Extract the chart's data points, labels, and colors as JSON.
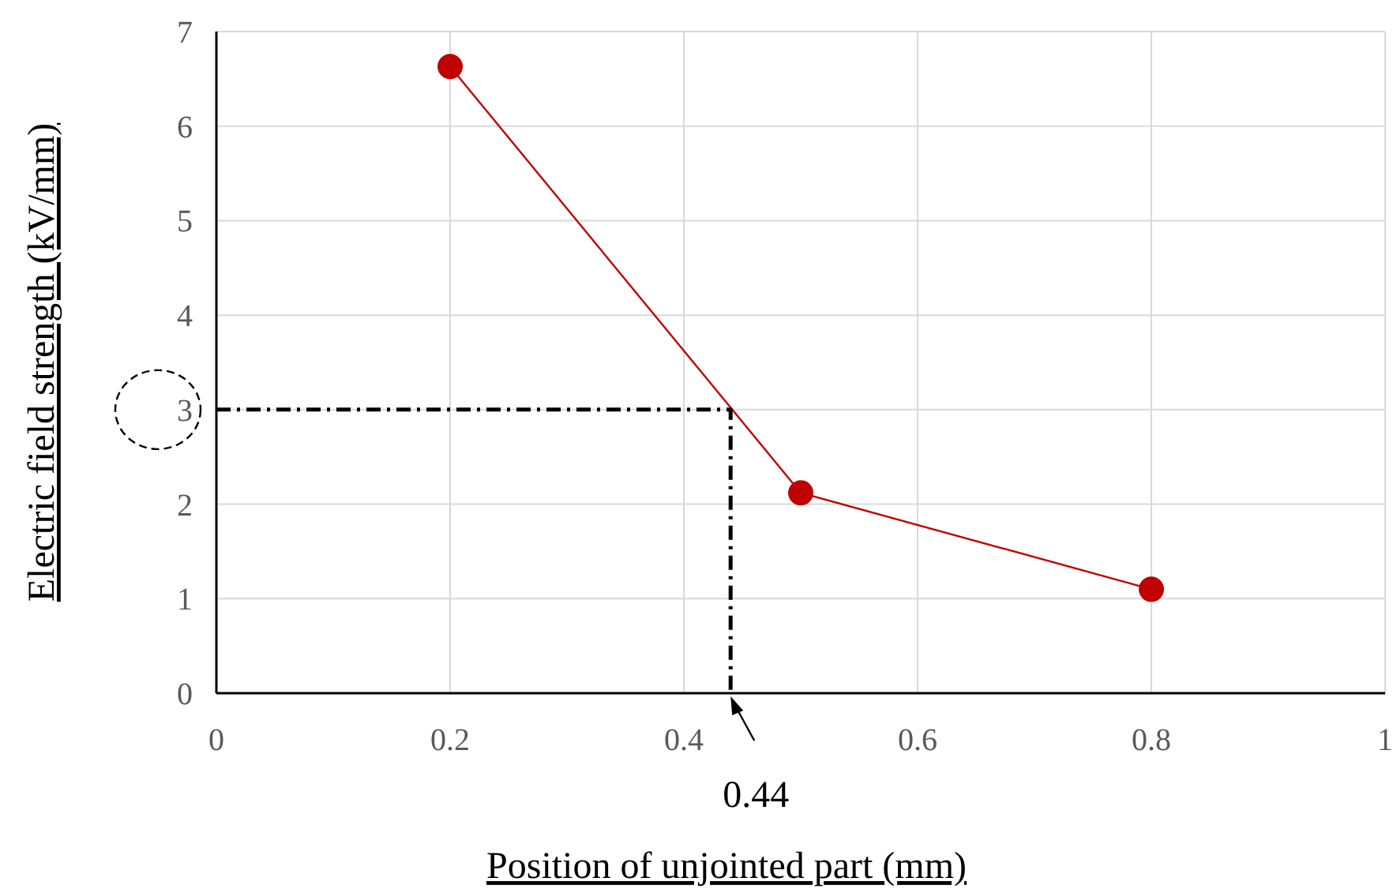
{
  "chart_data": {
    "type": "line",
    "xlabel": "Position of unjointed part (mm)",
    "ylabel": "Electric field strength  (kV/mm)",
    "xlim": [
      0,
      1
    ],
    "xticks": [
      0,
      0.2,
      0.4,
      0.6,
      0.8,
      1
    ],
    "ylim": [
      0,
      7
    ],
    "yticks": [
      0,
      1,
      2,
      3,
      4,
      5,
      6,
      7
    ],
    "grid": true,
    "series": [
      {
        "color": "#c00000",
        "x": [
          0.2,
          0.5,
          0.8
        ],
        "values": [
          6.63,
          2.12,
          1.1
        ],
        "marker": "circle",
        "line_style": "solid"
      },
      {
        "color": "#000000",
        "x": [
          0,
          0.44,
          0.44
        ],
        "values": [
          3,
          3,
          0
        ],
        "marker": "none",
        "line_style": "dashed"
      }
    ],
    "annotations": [
      {
        "text": "0.44",
        "x": 0.44,
        "y": 0
      }
    ]
  }
}
